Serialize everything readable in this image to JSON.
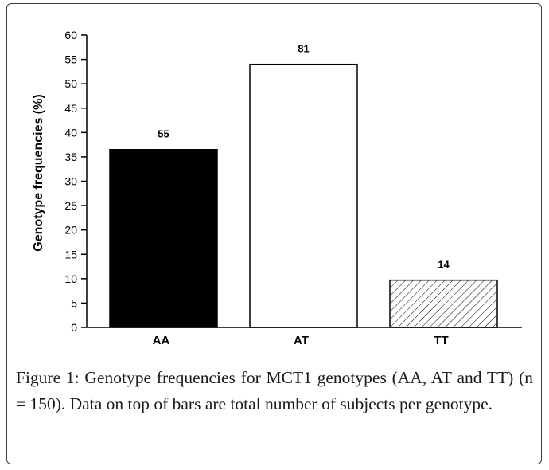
{
  "chart_data": {
    "type": "bar",
    "categories": [
      "AA",
      "AT",
      "TT"
    ],
    "values": [
      36.5,
      54.0,
      9.7
    ],
    "data_labels": [
      "55",
      "81",
      "14"
    ],
    "bar_styles": [
      "solid-black",
      "white",
      "hatched"
    ],
    "ylabel": "Genotype frequencies (%)",
    "xlabel": "",
    "ylim": [
      0,
      60
    ],
    "yticks": [
      "0",
      "5",
      "10",
      "15",
      "20",
      "25",
      "30",
      "35",
      "40",
      "45",
      "50",
      "55",
      "60"
    ],
    "grid": false,
    "legend": "none"
  },
  "caption": {
    "label": "Figure 1:",
    "text": " Genotype frequencies for MCT1 genotypes (AA, AT and TT) (n = 150). Data on top of bars are total number of subjects per genotype."
  },
  "colors": {
    "bar_aa": "#000000",
    "bar_at": "#ffffff",
    "bar_tt": "#ffffff",
    "axis": "#000000"
  }
}
